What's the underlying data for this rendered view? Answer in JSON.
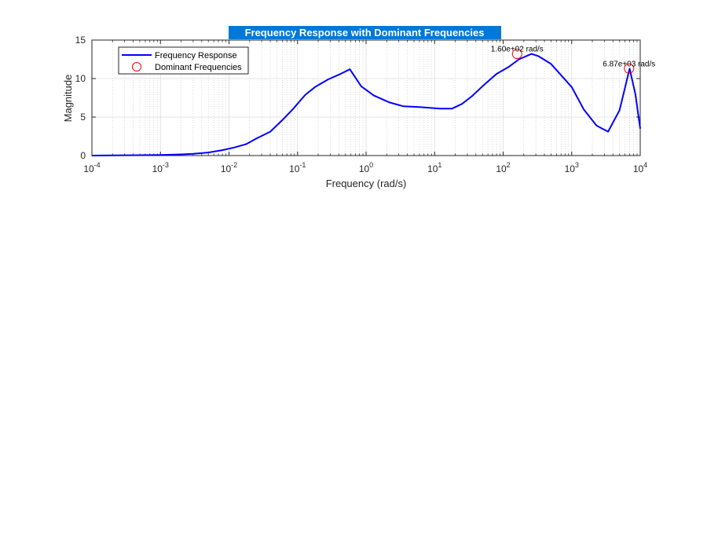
{
  "chart_data": {
    "type": "line",
    "title": "Frequency Response with Dominant Frequencies",
    "xlabel": "Frequency (rad/s)",
    "ylabel": "Magnitude",
    "xscale": "log",
    "xlim": [
      0.0001,
      10000
    ],
    "ylim": [
      0,
      15
    ],
    "yticks": [
      0,
      5,
      10,
      15
    ],
    "xtick_exponents": [
      "-4",
      "-3",
      "-2",
      "-1",
      "0",
      "1",
      "2",
      "3",
      "4"
    ],
    "grid": true,
    "legend_location": "top-left",
    "title_background": "#0078d7",
    "series": [
      {
        "name": "Frequency Response",
        "color": "#0000ff",
        "x": [
          0.0001,
          0.0002,
          0.0005,
          0.001,
          0.002,
          0.003,
          0.005,
          0.008,
          0.012,
          0.018,
          0.025,
          0.04,
          0.06,
          0.085,
          0.13,
          0.18,
          0.28,
          0.4,
          0.58,
          0.85,
          1.3,
          2.2,
          3.5,
          6,
          8.5,
          12,
          18,
          25,
          35,
          50,
          80,
          120,
          170,
          260,
          330,
          500,
          1000,
          1500,
          2300,
          3400,
          5000,
          7000,
          8500,
          10000
        ],
        "y": [
          0,
          0.02,
          0.05,
          0.08,
          0.15,
          0.22,
          0.4,
          0.7,
          1.05,
          1.5,
          2.2,
          3.1,
          4.6,
          6.0,
          7.9,
          8.9,
          9.9,
          10.5,
          11.2,
          9.0,
          7.8,
          6.9,
          6.4,
          6.3,
          6.2,
          6.1,
          6.1,
          6.7,
          7.7,
          9.0,
          10.6,
          11.5,
          12.5,
          13.2,
          12.9,
          11.9,
          8.9,
          6.0,
          3.9,
          3.1,
          5.9,
          11.3,
          8.0,
          3.5
        ]
      },
      {
        "name": "Dominant Frequencies",
        "color": "#ff0000",
        "marker": "circle",
        "x": [
          160,
          6870
        ],
        "y": [
          13.2,
          11.3
        ]
      }
    ],
    "annotations": [
      {
        "text": "1.60e+02 rad/s",
        "x": 160,
        "y": 13.2
      },
      {
        "text": "6.87e+03 rad/s",
        "x": 6870,
        "y": 11.3
      }
    ]
  }
}
